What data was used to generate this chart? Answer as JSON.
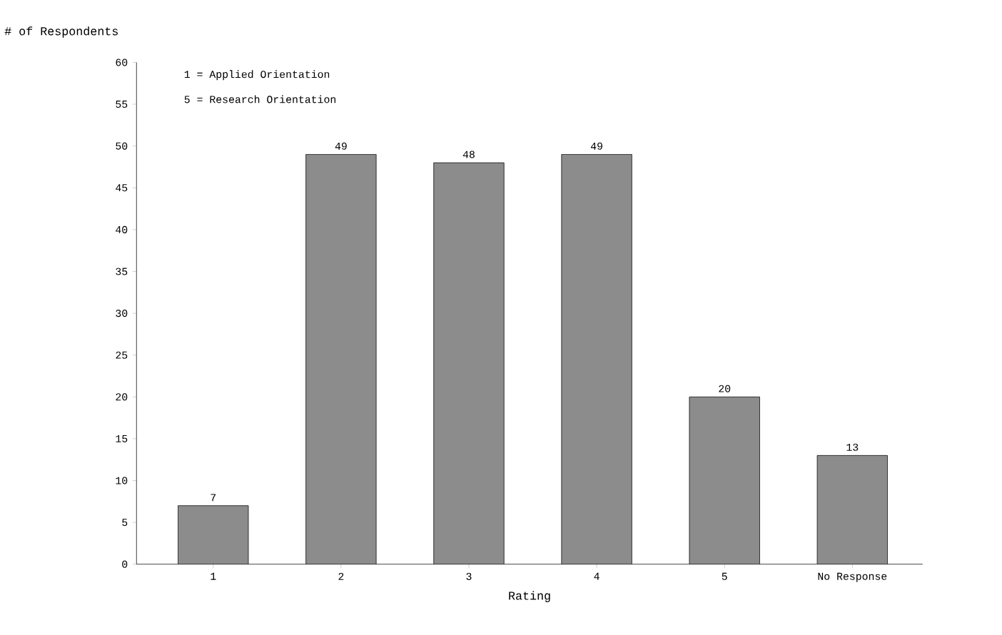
{
  "chart_data": {
    "type": "bar",
    "ylabel": "# of Respondents",
    "xlabel": "Rating",
    "categories": [
      "1",
      "2",
      "3",
      "4",
      "5",
      "No Response"
    ],
    "values": [
      7,
      49,
      48,
      49,
      20,
      13
    ],
    "color": "#8c8c8c",
    "ylim": [
      0,
      60
    ],
    "yticks": [
      0,
      5,
      10,
      15,
      20,
      25,
      30,
      35,
      40,
      45,
      50,
      55,
      60
    ],
    "data_labels": true,
    "annotations": [
      "1 = Applied Orientation",
      "5 = Research Orientation"
    ]
  }
}
